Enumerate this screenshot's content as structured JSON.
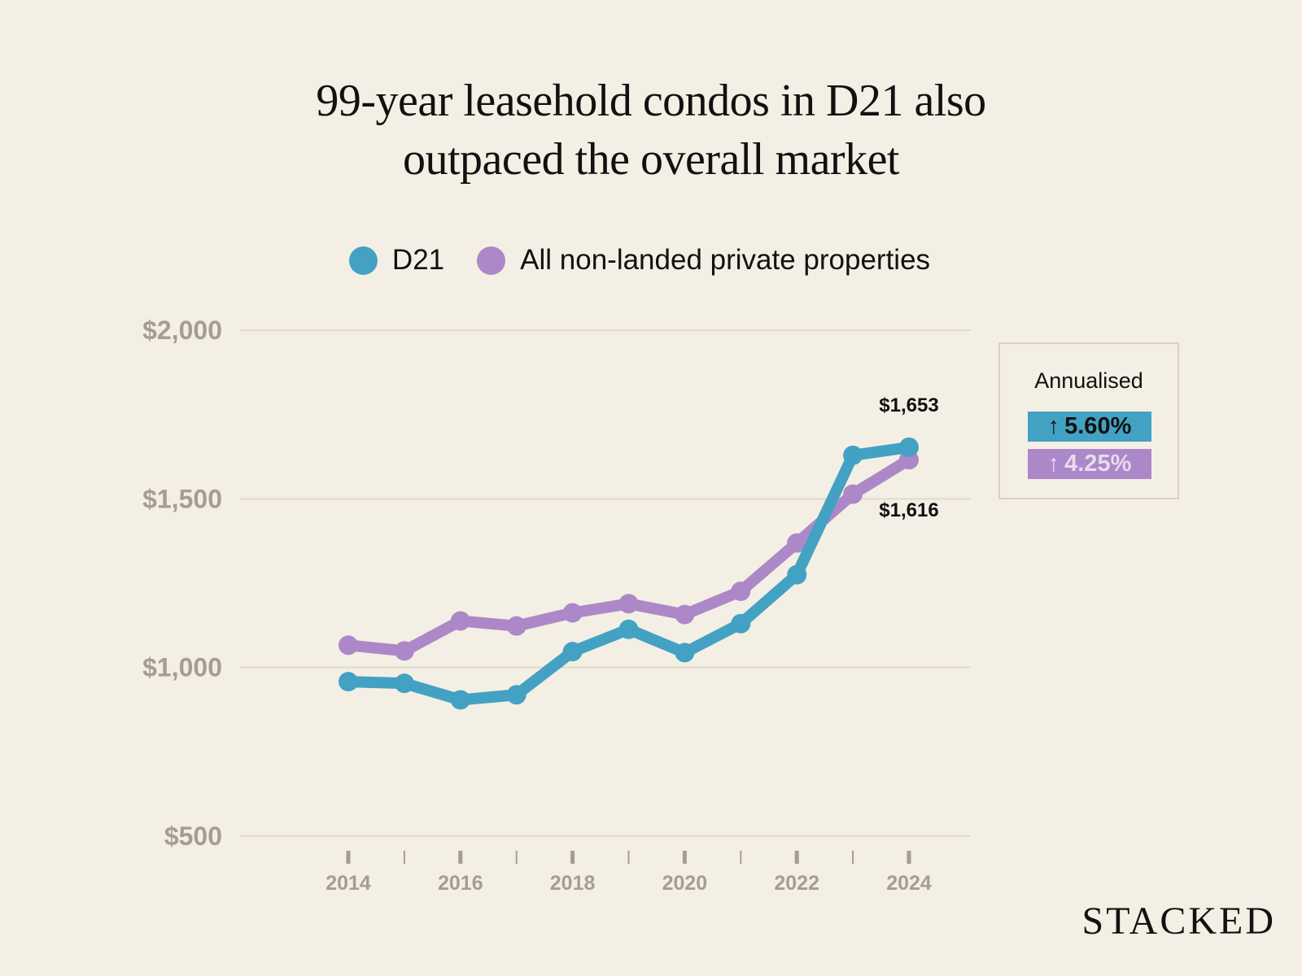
{
  "chart_data": {
    "type": "line",
    "title": "99-year leasehold condos in D21 also outpaced the overall market",
    "title_lines": [
      "99-year leasehold condos in D21 also",
      "outpaced the overall market"
    ],
    "xlabel": "",
    "ylabel": "",
    "x": [
      2014,
      2015,
      2016,
      2017,
      2018,
      2019,
      2020,
      2021,
      2022,
      2023,
      2024
    ],
    "x_tick_labels": [
      "2014",
      "2016",
      "2018",
      "2020",
      "2022",
      "2024"
    ],
    "y_ticks": [
      500,
      1000,
      1500,
      2000
    ],
    "y_tick_labels": [
      "$500",
      "$1,000",
      "$1,500",
      "$2,000"
    ],
    "ylim": [
      500,
      2000
    ],
    "grid": "horizontal",
    "legend_position": "top-center",
    "series": [
      {
        "name": "D21",
        "color": "#43a2c3",
        "values": [
          958,
          953,
          904,
          919,
          1047,
          1113,
          1044,
          1130,
          1275,
          1629,
          1653
        ],
        "end_label": "$1,653"
      },
      {
        "name": "All non-landed private properties",
        "color": "#ad88c8",
        "values": [
          1066,
          1049,
          1138,
          1123,
          1162,
          1189,
          1157,
          1226,
          1369,
          1514,
          1616
        ],
        "end_label": "$1,616"
      }
    ],
    "annotations": {
      "box_title": "Annualised",
      "badges": [
        {
          "arrow": "↑",
          "value": "5.60%",
          "series": "D21"
        },
        {
          "arrow": "↑",
          "value": "4.25%",
          "series": "All non-landed private properties"
        }
      ]
    }
  },
  "legend": [
    {
      "label": "D21",
      "color": "#43a2c3"
    },
    {
      "label": "All non-landed private properties",
      "color": "#ad88c8"
    }
  ],
  "brand": "STACKED"
}
